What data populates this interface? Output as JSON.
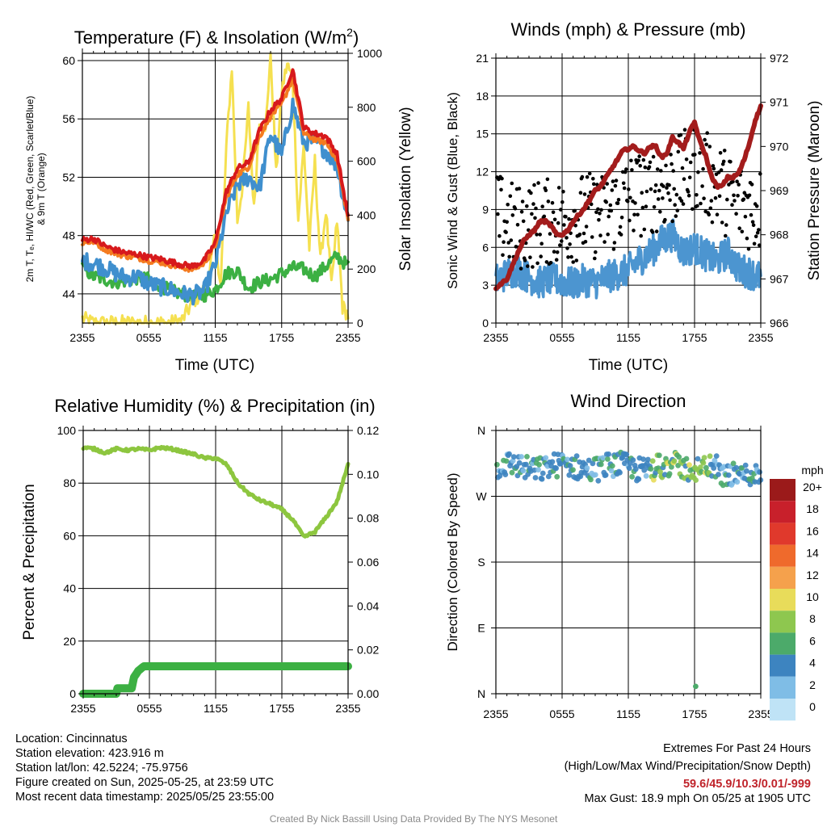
{
  "chart_data": [
    {
      "type": "line",
      "title": "Temperature (F) & Insolation (W/m²)",
      "title_main": "Temperature (F) & Insolation (W/m",
      "title_sup": "2",
      "title_end": ")",
      "xlabel": "Time (UTC)",
      "ylabel_left_line1": "2m T, Tₑ, HI/WC (Red, Green, Scarlet/Blue)",
      "ylabel_left_line2": "& 9m T (Orange)",
      "ylabel_right": "Solar Insolation (Yellow)",
      "x_ticks": [
        "2355",
        "0555",
        "1155",
        "1755",
        "2355"
      ],
      "y_left_ticks": [
        "44",
        "48",
        "52",
        "56",
        "60"
      ],
      "y_right_ticks": [
        "0",
        "200",
        "400",
        "600",
        "800",
        "1000"
      ],
      "ylim_left": [
        42,
        60.5
      ],
      "ylim_right": [
        0,
        1000
      ],
      "xlim_hours": [
        0,
        24
      ],
      "series": [
        {
          "key": "temp2m",
          "color": "#d7191c",
          "x": [
            0,
            1,
            2,
            3,
            4,
            5,
            6,
            7,
            8,
            9,
            10,
            11,
            12,
            13,
            14,
            15,
            16,
            17,
            18,
            19,
            20,
            21,
            22,
            23,
            24
          ],
          "values": [
            47.7,
            47.8,
            47.3,
            47.0,
            46.8,
            46.7,
            46.5,
            46.4,
            46.2,
            46.0,
            45.9,
            46.3,
            47.5,
            51.0,
            52.6,
            53.0,
            55.2,
            56.6,
            57.4,
            59.4,
            55.4,
            55.0,
            54.8,
            53.6,
            49.3
          ]
        },
        {
          "key": "temp9m",
          "color": "#f47b20",
          "x": [
            0,
            1,
            2,
            3,
            4,
            5,
            6,
            7,
            8,
            9,
            10,
            11,
            12,
            13,
            14,
            15,
            16,
            17,
            18,
            19,
            20,
            21,
            22,
            23,
            24
          ],
          "values": [
            47.5,
            47.6,
            47.1,
            46.8,
            46.6,
            46.5,
            46.3,
            46.2,
            46.0,
            45.8,
            45.7,
            46.1,
            47.3,
            50.6,
            52.2,
            52.7,
            54.8,
            56.2,
            57.0,
            58.8,
            55.0,
            54.6,
            54.4,
            53.2,
            49.1
          ]
        },
        {
          "key": "windchill",
          "color": "#3f8fce",
          "x": [
            0,
            1,
            2,
            3,
            4,
            5,
            6,
            7,
            8,
            9,
            10,
            11,
            12,
            13,
            14,
            15,
            16,
            17,
            18,
            19,
            20,
            21,
            22,
            23,
            24
          ],
          "values": [
            46.3,
            46.1,
            45.8,
            45.4,
            45.1,
            45.2,
            44.7,
            44.5,
            44.3,
            44.0,
            43.9,
            44.2,
            46.0,
            49.5,
            51.5,
            52.0,
            51.3,
            55.0,
            53.5,
            57.0,
            54.4,
            54.5,
            53.8,
            52.8,
            49.0
          ]
        },
        {
          "key": "dewpoint",
          "color": "#3cb043",
          "x": [
            0,
            1,
            2,
            3,
            4,
            5,
            6,
            7,
            8,
            9,
            10,
            11,
            12,
            13,
            14,
            15,
            16,
            17,
            18,
            19,
            20,
            21,
            22,
            23,
            24
          ],
          "values": [
            45.8,
            45.2,
            45.0,
            44.8,
            44.9,
            45.1,
            45.0,
            44.6,
            44.2,
            44.0,
            43.8,
            43.9,
            44.3,
            45.4,
            45.6,
            44.4,
            44.8,
            45.0,
            45.4,
            45.8,
            45.7,
            45.2,
            45.9,
            46.6,
            45.9
          ]
        },
        {
          "key": "insolation",
          "color": "#f5e050",
          "x": [
            0,
            1,
            2,
            3,
            4,
            5,
            6,
            7,
            8,
            9,
            10,
            11,
            11.5,
            12,
            12.5,
            13,
            13.5,
            14,
            14.5,
            15,
            15.5,
            16,
            16.5,
            17,
            17.5,
            18,
            18.5,
            19,
            19.5,
            20,
            20.5,
            21,
            21.5,
            22,
            22.5,
            23,
            23.5,
            24
          ],
          "values": [
            15,
            0,
            0,
            0,
            0,
            0,
            0,
            0,
            0,
            10,
            80,
            120,
            200,
            320,
            140,
            650,
            950,
            380,
            520,
            800,
            420,
            760,
            700,
            1000,
            550,
            860,
            960,
            900,
            380,
            660,
            280,
            600,
            230,
            420,
            130,
            380,
            60,
            30
          ]
        }
      ]
    },
    {
      "type": "scatter",
      "title": "Winds (mph) & Pressure (mb)",
      "xlabel": "Time (UTC)",
      "ylabel_left": "Sonic Wind & Gust (Blue, Black)",
      "ylabel_right": "Station Pressure (Maroon)",
      "x_ticks": [
        "2355",
        "0555",
        "1155",
        "1755",
        "2355"
      ],
      "y_left_ticks": [
        "0",
        "3",
        "6",
        "9",
        "12",
        "15",
        "18",
        "21"
      ],
      "y_right_ticks": [
        "966",
        "967",
        "968",
        "969",
        "970",
        "971",
        "972"
      ],
      "ylim_left": [
        0,
        21
      ],
      "ylim_right": [
        966,
        972
      ],
      "xlim_hours": [
        0,
        24
      ],
      "series": [
        {
          "key": "wind",
          "color": "#4c95d0",
          "x": [
            0,
            1,
            2,
            3,
            4,
            5,
            6,
            7,
            8,
            9,
            10,
            11,
            12,
            13,
            14,
            15,
            16,
            17,
            18,
            19,
            20,
            21,
            22,
            23,
            24
          ],
          "values": [
            3.4,
            3.9,
            4.2,
            3.6,
            3.2,
            3.5,
            3.3,
            3.1,
            3.4,
            3.2,
            3.6,
            3.9,
            4.2,
            5.0,
            5.6,
            6.5,
            7.0,
            5.6,
            6.0,
            5.4,
            4.9,
            5.6,
            4.3,
            4.0,
            3.6
          ]
        },
        {
          "key": "gust_typical",
          "color": "#000000",
          "x": [
            0,
            2,
            4,
            6,
            8,
            10,
            12,
            14,
            16,
            18,
            20,
            22,
            24
          ],
          "values": [
            8.5,
            7.5,
            8.0,
            8.0,
            8.5,
            8.5,
            10.0,
            10.5,
            11.0,
            12.5,
            11.0,
            9.5,
            9.0
          ]
        },
        {
          "key": "pressure",
          "color": "#a31c1c",
          "x": [
            0,
            0.5,
            1,
            1.5,
            2,
            2.5,
            3,
            3.5,
            4,
            4.5,
            5,
            5.5,
            6,
            6.5,
            7,
            7.5,
            8,
            8.5,
            9,
            9.5,
            10,
            10.5,
            11,
            11.5,
            12,
            12.5,
            13,
            13.5,
            14,
            14.5,
            15,
            15.5,
            16,
            16.5,
            17,
            17.5,
            18,
            18.5,
            19,
            19.5,
            20,
            20.5,
            21,
            21.5,
            22,
            22.5,
            23,
            23.5,
            24
          ],
          "values": [
            966.8,
            966.9,
            967.0,
            967.3,
            967.6,
            967.85,
            968.0,
            968.1,
            968.3,
            968.3,
            968.2,
            968.0,
            968.0,
            968.1,
            968.3,
            968.45,
            968.6,
            968.8,
            969.0,
            969.1,
            969.3,
            969.5,
            969.7,
            969.9,
            969.95,
            970.0,
            969.9,
            969.85,
            970.0,
            970.0,
            969.75,
            969.85,
            970.2,
            970.1,
            969.95,
            970.3,
            970.55,
            970.1,
            969.8,
            969.35,
            969.1,
            969.1,
            969.3,
            969.3,
            969.4,
            969.7,
            970.1,
            970.6,
            970.9
          ]
        }
      ]
    },
    {
      "type": "line",
      "title": "Relative Humidity (%) & Precipitation (in)",
      "xlabel": "",
      "ylabel_left": "Percent & Precipitation",
      "x_ticks": [
        "2355",
        "0555",
        "1155",
        "1755",
        "2355"
      ],
      "y_left_ticks": [
        "0",
        "20",
        "40",
        "60",
        "80",
        "100"
      ],
      "y_right_ticks": [
        "0.00",
        "0.02",
        "0.04",
        "0.06",
        "0.08",
        "0.10",
        "0.12"
      ],
      "ylim_left": [
        0,
        100
      ],
      "ylim_right": [
        0,
        0.12
      ],
      "xlim_hours": [
        0,
        24
      ],
      "series": [
        {
          "key": "rh",
          "color": "#8dc63f",
          "x": [
            0,
            1,
            2,
            3,
            4,
            5,
            6,
            7,
            8,
            9,
            10,
            11,
            12,
            13,
            14,
            15,
            16,
            17,
            18,
            19,
            20,
            21,
            22,
            23,
            24
          ],
          "values": [
            93.5,
            93.0,
            91.5,
            93.0,
            92.5,
            93.0,
            92.5,
            93.5,
            93.0,
            92.0,
            91.0,
            89.5,
            89.5,
            87.0,
            80.0,
            76.0,
            73.5,
            72.0,
            70.0,
            66.0,
            59.5,
            61.5,
            67.0,
            73.0,
            87.0
          ]
        },
        {
          "key": "precip",
          "color": "#3cb043",
          "x": [
            0,
            3,
            3.1,
            4.4,
            4.6,
            5,
            5.5,
            6,
            24
          ],
          "values": [
            0.0,
            0.0,
            0.0025,
            0.0025,
            0.0075,
            0.0105,
            0.0125,
            0.0125,
            0.0125
          ]
        }
      ]
    },
    {
      "type": "scatter",
      "title": "Wind Direction",
      "ylabel_left": "Direction (Colored By Speed)",
      "x_ticks": [
        "2355",
        "0555",
        "1155",
        "1755",
        "2355"
      ],
      "y_ticks": [
        "N",
        "W",
        "S",
        "E",
        "N"
      ],
      "ylim": [
        0,
        360
      ],
      "xlim_hours": [
        0,
        24
      ],
      "typical_direction_deg": [
        300,
        320
      ],
      "colorbar": {
        "unit": "mph",
        "labels": [
          "20+",
          "18",
          "16",
          "14",
          "12",
          "10",
          "8",
          "6",
          "4",
          "2",
          "0"
        ],
        "colors": [
          "#9b1a1a",
          "#c8202b",
          "#e0392c",
          "#ef6a2c",
          "#f5a14c",
          "#e8dc5a",
          "#8ec74f",
          "#4caa6a",
          "#3d84c0",
          "#7fbde6",
          "#bfe3f6"
        ]
      }
    }
  ],
  "info": {
    "location": "Location: Cincinnatus",
    "elevation": "Station elevation: 423.916 m",
    "latlon": "Station lat/lon: 42.5224; -75.9756",
    "created": "Figure created on Sun, 2025-05-25, at 23:59 UTC",
    "recent": "Most recent data timestamp: 2025/05/25 23:55:00"
  },
  "extremes": {
    "title": "Extremes For Past 24 Hours",
    "subtitle": "(High/Low/Max Wind/Precipitation/Snow Depth)",
    "values": "59.6/45.9/10.3/0.01/-999",
    "gust": "Max Gust: 18.9 mph On 05/25 at 1905 UTC"
  },
  "credit": "Created By Nick Bassill Using Data Provided By The NYS Mesonet"
}
